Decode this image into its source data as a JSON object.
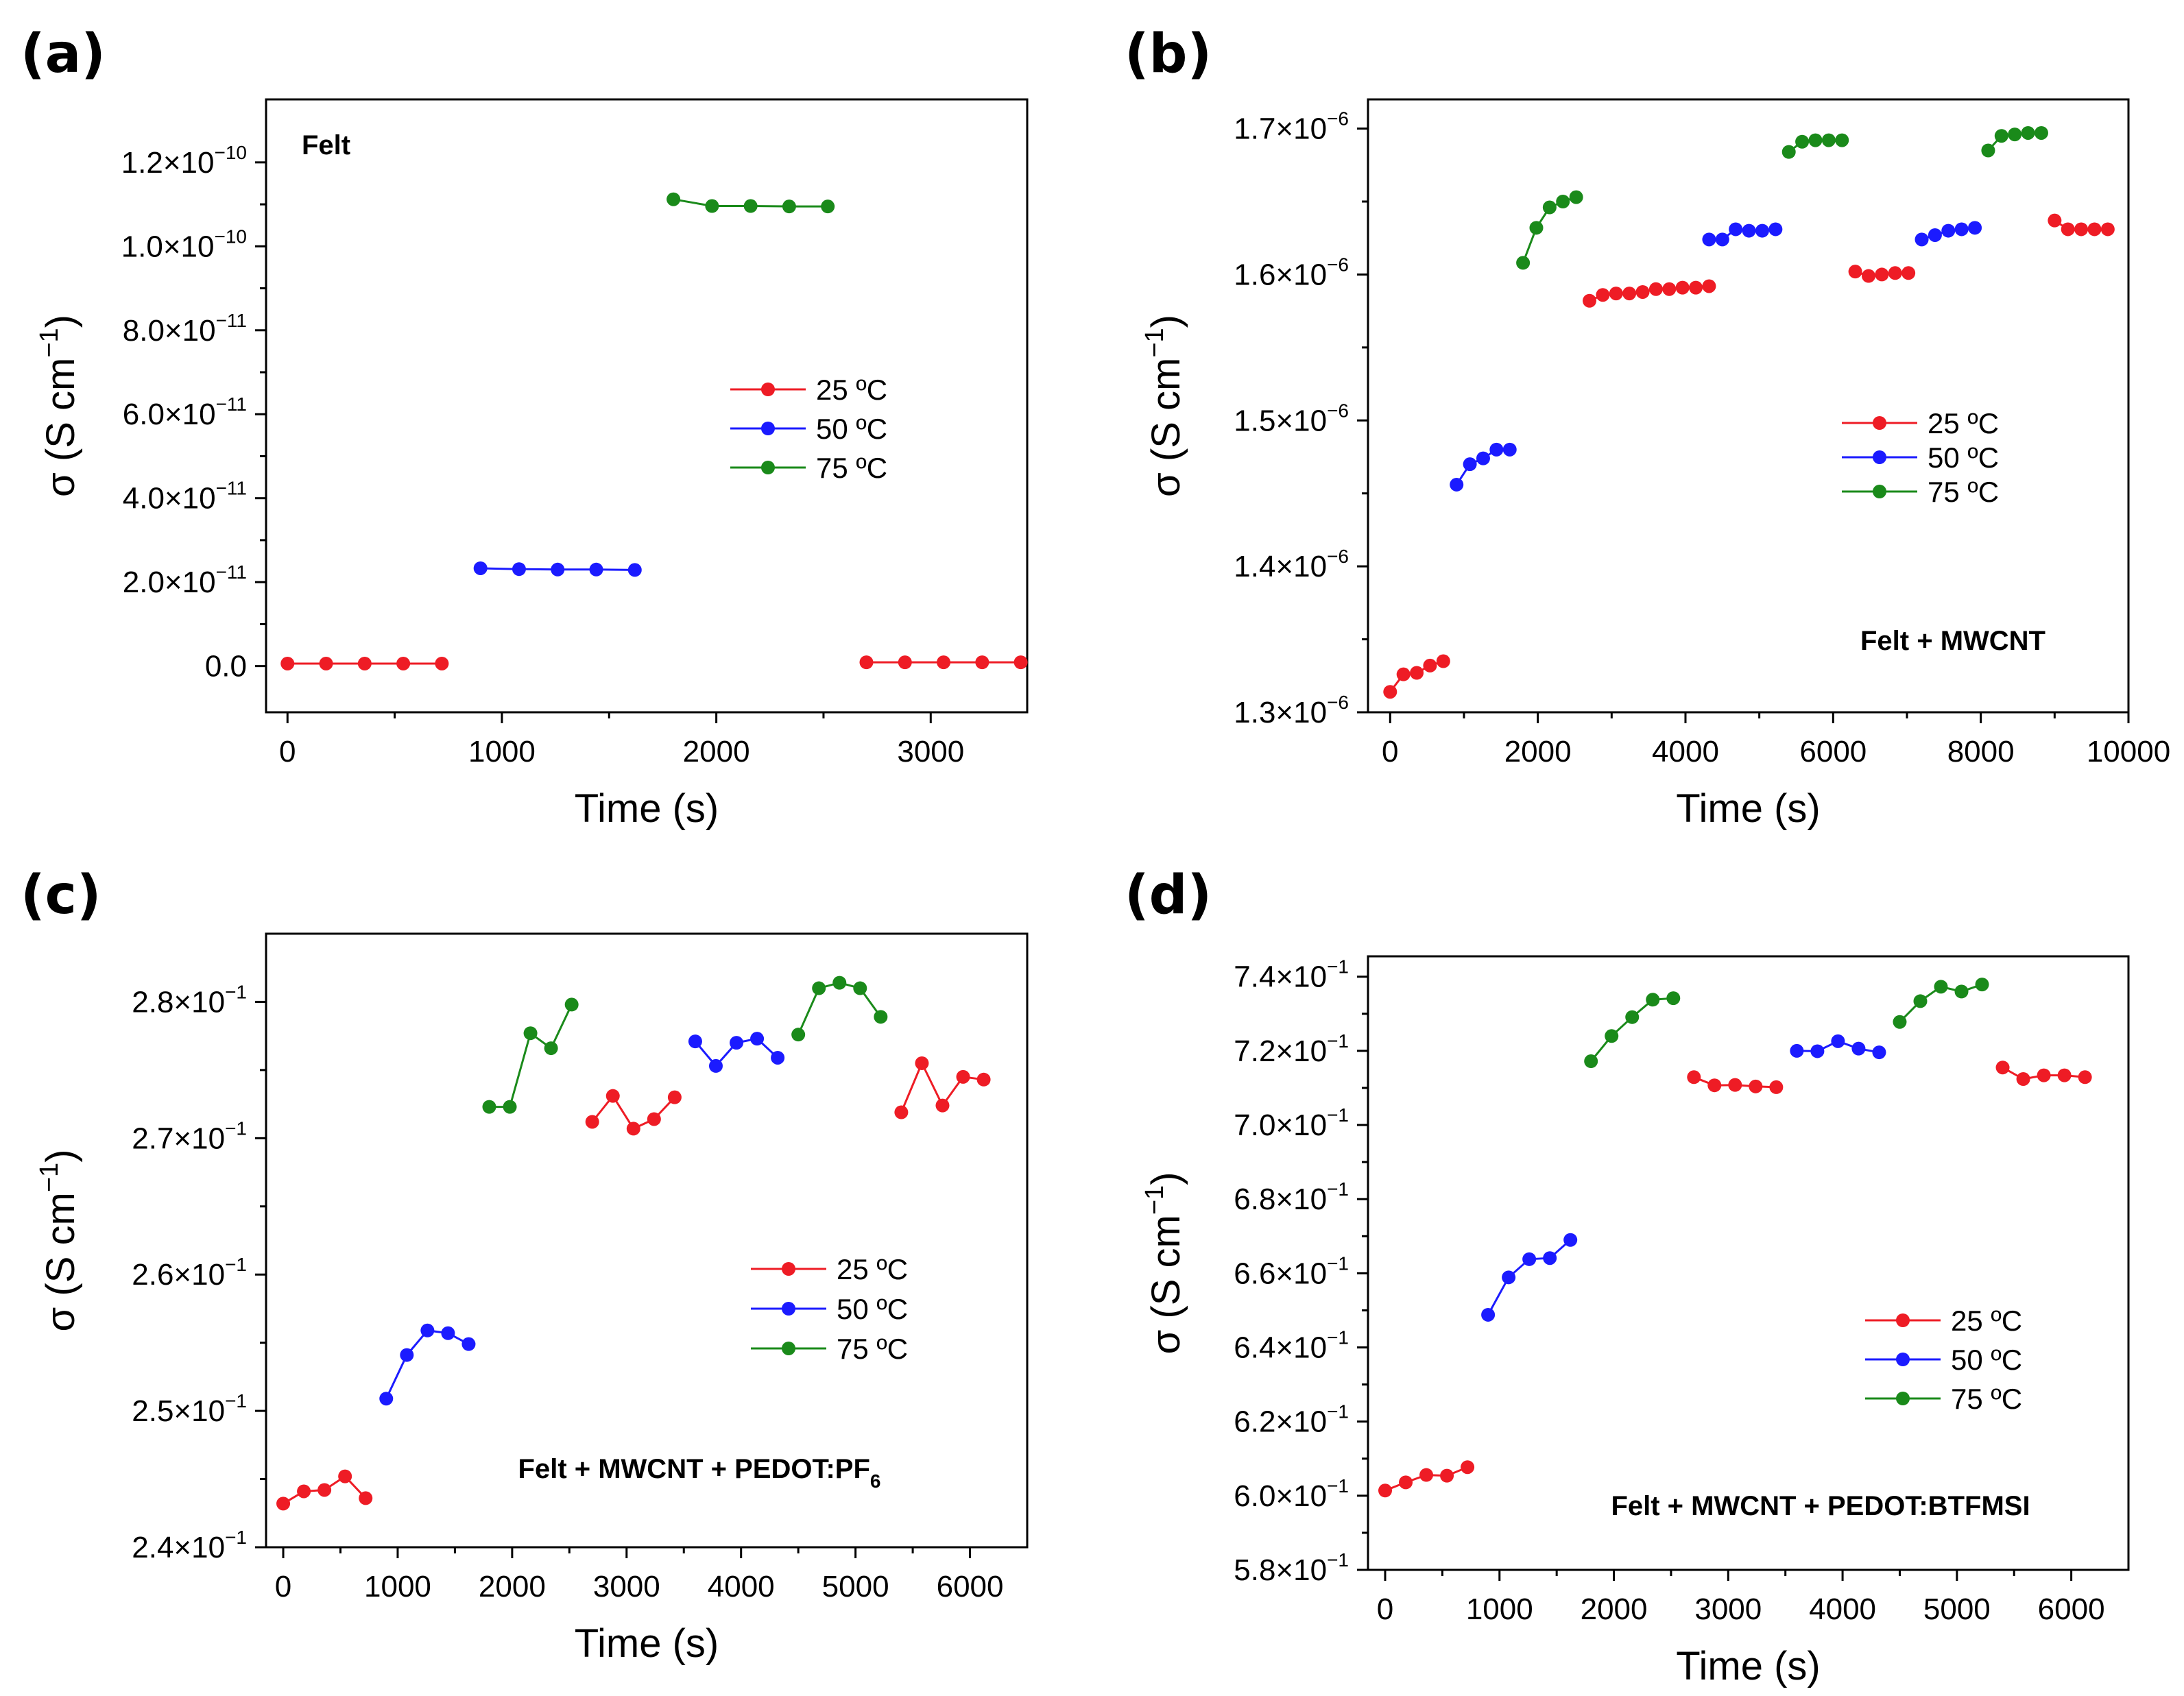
{
  "colors": {
    "25": "#ee1c25",
    "50": "#1b1bff",
    "75": "#1a8a1a"
  },
  "chart_data": [
    {
      "label": "(a)",
      "type": "line",
      "annotation": "Felt",
      "xlabel": "Time (s)",
      "ylabel_base": "σ (S cm",
      "ylabel_exp": "−1",
      "ylabel_close": ")",
      "xlim": [
        -100,
        3450
      ],
      "ylim": [
        -1.1e-11,
        1.35e-10
      ],
      "xticks": [
        0,
        1000,
        2000,
        3000
      ],
      "yticks": [
        {
          "v": 0,
          "m": "0.0",
          "e": ""
        },
        {
          "v": 2e-11,
          "m": "2.0×10",
          "e": "−11"
        },
        {
          "v": 4e-11,
          "m": "4.0×10",
          "e": "−11"
        },
        {
          "v": 6e-11,
          "m": "6.0×10",
          "e": "−11"
        },
        {
          "v": 8e-11,
          "m": "8.0×10",
          "e": "−11"
        },
        {
          "v": 1e-10,
          "m": "1.0×10",
          "e": "−10"
        },
        {
          "v": 1.2e-10,
          "m": "1.2×10",
          "e": "−10"
        }
      ],
      "legend": [
        "25 ºC",
        "50 ºC",
        "75 ºC"
      ],
      "legend_position": "right",
      "series": [
        {
          "name": "25 ºC",
          "temp": "25",
          "x": [
            0,
            180,
            360,
            540,
            720
          ],
          "y": [
            6e-13,
            6e-13,
            6e-13,
            6e-13,
            6e-13
          ]
        },
        {
          "name": "50 ºC",
          "temp": "50",
          "x": [
            900,
            1080,
            1260,
            1440,
            1620
          ],
          "y": [
            2.33e-11,
            2.31e-11,
            2.3e-11,
            2.3e-11,
            2.29e-11
          ]
        },
        {
          "name": "75 ºC",
          "temp": "75",
          "x": [
            1800,
            1980,
            2160,
            2340,
            2520
          ],
          "y": [
            1.112e-10,
            1.096e-10,
            1.096e-10,
            1.095e-10,
            1.095e-10
          ]
        },
        {
          "name": "25 ºC",
          "temp": "25",
          "x": [
            2700,
            2880,
            3060,
            3240,
            3420
          ],
          "y": [
            9e-13,
            9e-13,
            9e-13,
            9e-13,
            9e-13
          ]
        }
      ]
    },
    {
      "label": "(b)",
      "type": "line",
      "annotation": "Felt + MWCNT",
      "xlabel": "Time (s)",
      "ylabel_base": "σ (S cm",
      "ylabel_exp": "−1",
      "ylabel_close": ")",
      "xlim": [
        -300,
        10000
      ],
      "ylim": [
        1.3e-06,
        1.72e-06
      ],
      "xticks": [
        0,
        2000,
        4000,
        6000,
        8000,
        10000
      ],
      "yticks": [
        {
          "v": 1.3e-06,
          "m": "1.3×10",
          "e": "−6"
        },
        {
          "v": 1.4e-06,
          "m": "1.4×10",
          "e": "−6"
        },
        {
          "v": 1.5e-06,
          "m": "1.5×10",
          "e": "−6"
        },
        {
          "v": 1.6e-06,
          "m": "1.6×10",
          "e": "−6"
        },
        {
          "v": 1.7e-06,
          "m": "1.7×10",
          "e": "−6"
        }
      ],
      "legend": [
        "25 ºC",
        "50 ºC",
        "75 ºC"
      ],
      "legend_position": "right",
      "series": [
        {
          "name": "25 ºC",
          "temp": "25",
          "x": [
            0,
            180,
            360,
            540,
            720
          ],
          "y": [
            1.314e-06,
            1.326e-06,
            1.327e-06,
            1.332e-06,
            1.335e-06
          ]
        },
        {
          "name": "50 ºC",
          "temp": "50",
          "x": [
            900,
            1080,
            1260,
            1440,
            1620
          ],
          "y": [
            1.456e-06,
            1.47e-06,
            1.474e-06,
            1.48e-06,
            1.48e-06
          ]
        },
        {
          "name": "75 ºC",
          "temp": "75",
          "x": [
            1800,
            1980,
            2160,
            2340,
            2520
          ],
          "y": [
            1.608e-06,
            1.632e-06,
            1.646e-06,
            1.65e-06,
            1.653e-06
          ]
        },
        {
          "name": "25 ºC",
          "temp": "25",
          "x": [
            2700,
            2880,
            3060,
            3240,
            3420,
            3600,
            3780,
            3960,
            4140,
            4320
          ],
          "y": [
            1.582e-06,
            1.586e-06,
            1.587e-06,
            1.587e-06,
            1.588e-06,
            1.59e-06,
            1.59e-06,
            1.591e-06,
            1.591e-06,
            1.592e-06
          ]
        },
        {
          "name": "50 ºC",
          "temp": "50",
          "x": [
            4320,
            4500,
            4680,
            4860,
            5040,
            5220
          ],
          "y": [
            1.624e-06,
            1.624e-06,
            1.631e-06,
            1.63e-06,
            1.63e-06,
            1.631e-06
          ]
        },
        {
          "name": "75 ºC",
          "temp": "75",
          "x": [
            5400,
            5580,
            5760,
            5940,
            6120
          ],
          "y": [
            1.684e-06,
            1.691e-06,
            1.692e-06,
            1.692e-06,
            1.692e-06
          ]
        },
        {
          "name": "25 ºC",
          "temp": "25",
          "x": [
            6300,
            6480,
            6660,
            6840,
            7020
          ],
          "y": [
            1.602e-06,
            1.599e-06,
            1.6e-06,
            1.601e-06,
            1.601e-06
          ]
        },
        {
          "name": "50 ºC",
          "temp": "50",
          "x": [
            7200,
            7380,
            7560,
            7740,
            7920
          ],
          "y": [
            1.624e-06,
            1.627e-06,
            1.63e-06,
            1.631e-06,
            1.632e-06
          ]
        },
        {
          "name": "75 ºC",
          "temp": "75",
          "x": [
            8100,
            8280,
            8460,
            8640,
            8820
          ],
          "y": [
            1.685e-06,
            1.695e-06,
            1.696e-06,
            1.697e-06,
            1.697e-06
          ]
        },
        {
          "name": "25 ºC",
          "temp": "25",
          "x": [
            9000,
            9180,
            9360,
            9540,
            9720
          ],
          "y": [
            1.637e-06,
            1.631e-06,
            1.631e-06,
            1.631e-06,
            1.631e-06
          ]
        }
      ]
    },
    {
      "label": "(c)",
      "type": "line",
      "annotation_main": "Felt + MWCNT + PEDOT:PF",
      "annotation_sub": "6",
      "xlabel": "Time (s)",
      "ylabel_base": "σ (S cm",
      "ylabel_exp": "−1",
      "ylabel_close": ")",
      "xlim": [
        -150,
        6500
      ],
      "ylim": [
        0.24,
        0.285
      ],
      "xticks": [
        0,
        1000,
        2000,
        3000,
        4000,
        5000,
        6000
      ],
      "yticks": [
        {
          "v": 0.24,
          "m": "2.4×10",
          "e": "−1"
        },
        {
          "v": 0.25,
          "m": "2.5×10",
          "e": "−1"
        },
        {
          "v": 0.26,
          "m": "2.6×10",
          "e": "−1"
        },
        {
          "v": 0.27,
          "m": "2.7×10",
          "e": "−1"
        },
        {
          "v": 0.28,
          "m": "2.8×10",
          "e": "−1"
        }
      ],
      "legend": [
        "25 ºC",
        "50 ºC",
        "75 ºC"
      ],
      "legend_position": "right",
      "series": [
        {
          "name": "25 ºC",
          "temp": "25",
          "x": [
            0,
            180,
            360,
            540,
            720
          ],
          "y": [
            0.2432,
            0.2441,
            0.2442,
            0.2452,
            0.2436
          ]
        },
        {
          "name": "50 ºC",
          "temp": "50",
          "x": [
            900,
            1080,
            1260,
            1440,
            1620
          ],
          "y": [
            0.2509,
            0.2541,
            0.2559,
            0.2557,
            0.2549
          ]
        },
        {
          "name": "75 ºC",
          "temp": "75",
          "x": [
            1800,
            1980,
            2160,
            2340,
            2520
          ],
          "y": [
            0.2723,
            0.2723,
            0.2777,
            0.2766,
            0.2798
          ]
        },
        {
          "name": "25 ºC",
          "temp": "25",
          "x": [
            2700,
            2880,
            3060,
            3240,
            3420
          ],
          "y": [
            0.2712,
            0.2731,
            0.2707,
            0.2714,
            0.273
          ]
        },
        {
          "name": "50 ºC",
          "temp": "50",
          "x": [
            3600,
            3780,
            3960,
            4140,
            4320
          ],
          "y": [
            0.2771,
            0.2753,
            0.277,
            0.2773,
            0.2759
          ]
        },
        {
          "name": "75 ºC",
          "temp": "75",
          "x": [
            4500,
            4680,
            4860,
            5040,
            5220
          ],
          "y": [
            0.2776,
            0.281,
            0.2814,
            0.281,
            0.2789
          ]
        },
        {
          "name": "25 ºC",
          "temp": "25",
          "x": [
            5400,
            5580,
            5760,
            5940,
            6120
          ],
          "y": [
            0.2719,
            0.2755,
            0.2724,
            0.2745,
            0.2743
          ]
        }
      ]
    },
    {
      "label": "(d)",
      "type": "line",
      "annotation": "Felt + MWCNT + PEDOT:BTFMSI",
      "xlabel": "Time (s)",
      "ylabel_base": "σ (S cm",
      "ylabel_exp": "−1",
      "ylabel_close": ")",
      "xlim": [
        -150,
        6500
      ],
      "ylim": [
        0.58,
        0.7455
      ],
      "xticks": [
        0,
        1000,
        2000,
        3000,
        4000,
        5000,
        6000
      ],
      "yticks": [
        {
          "v": 0.58,
          "m": "5.8×10",
          "e": "−1"
        },
        {
          "v": 0.6,
          "m": "6.0×10",
          "e": "−1"
        },
        {
          "v": 0.62,
          "m": "6.2×10",
          "e": "−1"
        },
        {
          "v": 0.64,
          "m": "6.4×10",
          "e": "−1"
        },
        {
          "v": 0.66,
          "m": "6.6×10",
          "e": "−1"
        },
        {
          "v": 0.68,
          "m": "6.8×10",
          "e": "−1"
        },
        {
          "v": 0.7,
          "m": "7.0×10",
          "e": "−1"
        },
        {
          "v": 0.72,
          "m": "7.2×10",
          "e": "−1"
        },
        {
          "v": 0.74,
          "m": "7.4×10",
          "e": "−1"
        }
      ],
      "legend": [
        "25 ºC",
        "50 ºC",
        "75 ºC"
      ],
      "legend_position": "right",
      "series": [
        {
          "name": "25 ºC",
          "temp": "25",
          "x": [
            0,
            180,
            360,
            540,
            720
          ],
          "y": [
            0.6014,
            0.6036,
            0.6056,
            0.6054,
            0.6077
          ]
        },
        {
          "name": "50 ºC",
          "temp": "50",
          "x": [
            900,
            1080,
            1260,
            1440,
            1620
          ],
          "y": [
            0.6488,
            0.6589,
            0.6638,
            0.6641,
            0.669
          ]
        },
        {
          "name": "75 ºC",
          "temp": "75",
          "x": [
            1800,
            1980,
            2160,
            2340,
            2520
          ],
          "y": [
            0.7172,
            0.724,
            0.7291,
            0.7338,
            0.7342
          ]
        },
        {
          "name": "25 ºC",
          "temp": "25",
          "x": [
            2700,
            2880,
            3060,
            3240,
            3420
          ],
          "y": [
            0.7129,
            0.7107,
            0.7108,
            0.7104,
            0.7102
          ]
        },
        {
          "name": "50 ºC",
          "temp": "50",
          "x": [
            3600,
            3780,
            3960,
            4140,
            4320
          ],
          "y": [
            0.72,
            0.7199,
            0.7226,
            0.7206,
            0.7196
          ]
        },
        {
          "name": "75 ºC",
          "temp": "75",
          "x": [
            4500,
            4680,
            4860,
            5040,
            5220
          ],
          "y": [
            0.7278,
            0.7334,
            0.7373,
            0.736,
            0.7379
          ]
        },
        {
          "name": "25 ºC",
          "temp": "25",
          "x": [
            5400,
            5580,
            5760,
            5940,
            6120
          ],
          "y": [
            0.7155,
            0.7124,
            0.7134,
            0.7134,
            0.7129
          ]
        }
      ]
    }
  ]
}
